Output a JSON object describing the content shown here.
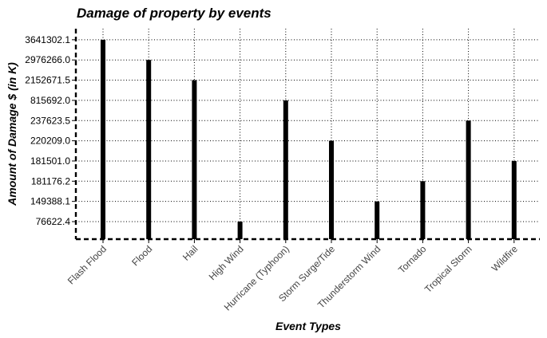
{
  "chart_data": {
    "type": "bar",
    "title": "Damage of property by events",
    "xlabel": "Event Types",
    "ylabel": "Amount of Damage $ (in K)",
    "categories": [
      "Flash Flood",
      "Flood",
      "Hail",
      "High Wind",
      "Hurricane (Typhoon)",
      "Storm Surge/Tide",
      "Thunderstorm Wind",
      "Tornado",
      "Tropical Storm",
      "Wildfire"
    ],
    "values": [
      "3641302.1",
      "2976266.0",
      "2152671.5",
      "76622.4",
      "815692.0",
      "220209.0",
      "149388.1",
      "181176.2",
      "237623.5",
      "181501.0"
    ],
    "y_ticks": [
      "76622.4",
      "149388.1",
      "181176.2",
      "181501.0",
      "220209.0",
      "237623.5",
      "815692.0",
      "2152671.5",
      "2976266.0",
      "3641302.1"
    ],
    "y_scale": "discrete (ordered)",
    "grid": true,
    "legend": "none"
  }
}
